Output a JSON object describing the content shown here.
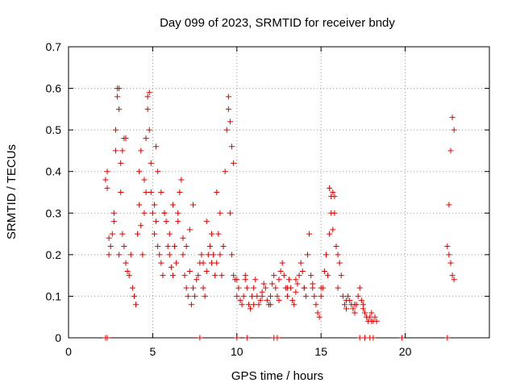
{
  "chart_data": {
    "type": "scatter",
    "title": "Day 099 of 2023, SRMTID for receiver bndy",
    "xlabel": "GPS time / hours",
    "ylabel": "SRMTID / TECUs",
    "xlim": [
      0,
      25
    ],
    "ylim": [
      0,
      0.7
    ],
    "xticks": [
      0,
      5,
      10,
      15,
      20
    ],
    "xtick_labels": [
      "0",
      "5",
      "10",
      "15",
      "20"
    ],
    "yticks": [
      0,
      0.1,
      0.2,
      0.3,
      0.4,
      0.5,
      0.6,
      0.7
    ],
    "ytick_labels": [
      "0",
      "0.1",
      "0.2",
      "0.3",
      "0.4",
      "0.5",
      "0.6",
      "0.7"
    ],
    "grid": true,
    "marker": "plus",
    "color": "#e00000",
    "series": [
      {
        "name": "SRMTID",
        "x": [
          2.3,
          2.4,
          2.5,
          2.6,
          2.7,
          2.8,
          2.9,
          3.0,
          3.0,
          3.1,
          3.2,
          3.3,
          3.4,
          3.5,
          3.6,
          3.7,
          3.8,
          3.9,
          4.0,
          4.1,
          4.2,
          4.3,
          4.4,
          4.5,
          4.6,
          4.7,
          4.8,
          4.9,
          5.0,
          5.1,
          5.2,
          5.3,
          5.4,
          5.5,
          5.6,
          5.7,
          5.8,
          5.9,
          6.0,
          6.1,
          6.2,
          6.3,
          6.4,
          6.5,
          6.6,
          6.7,
          6.8,
          6.9,
          7.0,
          7.1,
          7.2,
          7.3,
          7.4,
          7.5,
          7.6,
          7.7,
          7.8,
          7.9,
          8.0,
          8.1,
          8.2,
          8.3,
          8.4,
          8.5,
          8.6,
          8.7,
          8.8,
          8.9,
          9.0,
          9.1,
          9.2,
          9.3,
          9.4,
          9.5,
          9.6,
          9.7,
          9.8,
          9.9,
          10.0,
          10.1,
          10.2,
          10.3,
          10.4,
          10.5,
          10.6,
          10.7,
          10.8,
          10.9,
          11.0,
          11.1,
          11.2,
          11.3,
          11.4,
          11.5,
          11.6,
          11.7,
          11.8,
          11.9,
          12.0,
          12.1,
          12.2,
          12.3,
          12.4,
          12.5,
          12.6,
          12.7,
          12.8,
          12.9,
          13.0,
          13.1,
          13.2,
          13.3,
          13.4,
          13.5,
          13.6,
          13.7,
          13.8,
          13.9,
          14.0,
          14.1,
          14.2,
          14.3,
          14.4,
          14.5,
          14.6,
          14.7,
          14.8,
          14.9,
          15.0,
          15.1,
          15.2,
          15.3,
          15.4,
          15.5,
          15.6,
          15.7,
          15.8,
          15.9,
          16.0,
          16.1,
          16.2,
          16.3,
          16.4,
          16.5,
          16.6,
          16.7,
          16.8,
          16.9,
          17.0,
          17.1,
          17.2,
          17.3,
          17.4,
          17.5,
          17.6,
          17.7,
          17.8,
          17.9,
          18.0,
          18.1,
          18.2,
          18.3,
          22.5,
          22.6,
          22.7,
          22.8,
          22.9,
          2.2,
          2.3,
          2.4,
          2.7,
          2.8,
          2.9,
          3.0,
          3.1,
          3.2,
          3.3,
          3.4,
          4.2,
          4.3,
          4.5,
          4.6,
          4.7,
          4.8,
          4.9,
          5.1,
          5.2,
          5.3,
          5.5,
          5.7,
          6.0,
          6.2,
          6.5,
          6.8,
          7.0,
          7.2,
          7.4,
          8.0,
          8.2,
          8.5,
          8.8,
          9.0,
          9.2,
          9.5,
          9.6,
          9.7,
          9.8,
          10.0,
          10.5,
          11.0,
          11.5,
          12.0,
          12.5,
          13.0,
          13.5,
          14.0,
          14.5,
          15.0,
          15.5,
          15.6,
          15.7,
          15.8,
          16.0,
          16.5,
          17.0,
          17.5,
          18.0,
          22.8,
          22.9,
          22.7,
          22.6
        ],
        "y": [
          0.4,
          0.2,
          0.22,
          0.25,
          0.3,
          0.5,
          0.6,
          0.55,
          0.2,
          0.35,
          0.45,
          0.48,
          0.18,
          0.16,
          0.15,
          0.2,
          0.12,
          0.1,
          0.08,
          0.25,
          0.4,
          0.45,
          0.2,
          0.3,
          0.35,
          0.55,
          0.5,
          0.35,
          0.3,
          0.25,
          0.28,
          0.22,
          0.2,
          0.18,
          0.15,
          0.3,
          0.28,
          0.22,
          0.2,
          0.17,
          0.15,
          0.22,
          0.18,
          0.3,
          0.35,
          0.38,
          0.2,
          0.15,
          0.12,
          0.1,
          0.16,
          0.08,
          0.12,
          0.1,
          0.14,
          0.15,
          0.18,
          0.2,
          0.12,
          0.1,
          0.16,
          0.2,
          0.22,
          0.25,
          0.2,
          0.15,
          0.18,
          0.25,
          0.2,
          0.15,
          0.22,
          0.4,
          0.5,
          0.55,
          0.3,
          0.2,
          0.15,
          0.14,
          0.1,
          0.12,
          0.09,
          0.08,
          0.1,
          0.15,
          0.12,
          0.08,
          0.07,
          0.1,
          0.12,
          0.14,
          0.1,
          0.08,
          0.09,
          0.11,
          0.13,
          0.12,
          0.09,
          0.08,
          0.1,
          0.13,
          0.15,
          0.12,
          0.1,
          0.14,
          0.16,
          0.18,
          0.15,
          0.12,
          0.1,
          0.14,
          0.12,
          0.09,
          0.08,
          0.11,
          0.13,
          0.15,
          0.18,
          0.16,
          0.12,
          0.1,
          0.2,
          0.25,
          0.15,
          0.12,
          0.1,
          0.08,
          0.06,
          0.05,
          0.1,
          0.12,
          0.16,
          0.2,
          0.15,
          0.25,
          0.3,
          0.35,
          0.34,
          0.22,
          0.2,
          0.18,
          0.15,
          0.1,
          0.08,
          0.07,
          0.1,
          0.09,
          0.08,
          0.07,
          0.06,
          0.08,
          0.1,
          0.12,
          0.09,
          0.07,
          0.06,
          0.05,
          0.04,
          0.05,
          0.06,
          0.04,
          0.05,
          0.04,
          0.22,
          0.2,
          0.18,
          0.15,
          0.14,
          0.38,
          0.36,
          0.24,
          0.28,
          0.45,
          0.58,
          0.6,
          0.42,
          0.25,
          0.22,
          0.48,
          0.32,
          0.27,
          0.38,
          0.48,
          0.58,
          0.59,
          0.42,
          0.32,
          0.46,
          0.4,
          0.35,
          0.3,
          0.25,
          0.32,
          0.28,
          0.24,
          0.22,
          0.26,
          0.32,
          0.18,
          0.28,
          0.18,
          0.35,
          0.3,
          0.22,
          0.58,
          0.52,
          0.46,
          0.42,
          0.14,
          0.14,
          0.08,
          0.1,
          0.08,
          0.09,
          0.12,
          0.14,
          0.12,
          0.13,
          0.12,
          0.36,
          0.34,
          0.26,
          0.3,
          0.12,
          0.09,
          0.08,
          0.08,
          0.04,
          0.53,
          0.5,
          0.45,
          0.32
        ],
        "zeros_x": [
          2.2,
          2.3,
          7.8,
          10.0,
          10.6,
          12.2,
          12.4,
          17.3,
          17.6,
          17.9,
          18.1,
          19.8,
          22.5
        ]
      }
    ]
  }
}
